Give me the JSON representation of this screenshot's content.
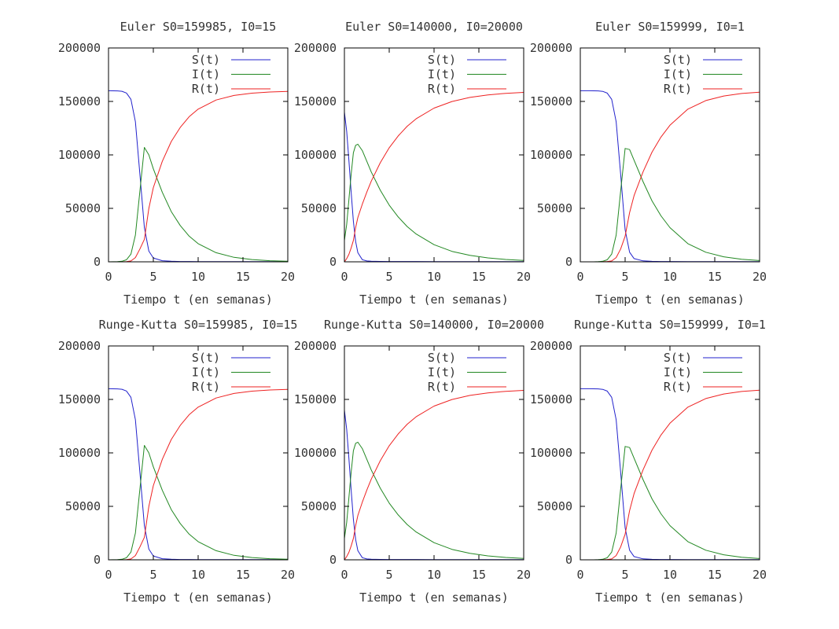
{
  "chart_data": [
    {
      "type": "line",
      "title": "Euler S0=159985, I0=15",
      "xlabel": "Tiempo t (en semanas)",
      "ylabel": "",
      "xlim": [
        0,
        20
      ],
      "ylim": [
        0,
        200000
      ],
      "xticks": [
        "0",
        "5",
        "10",
        "15",
        "20"
      ],
      "yticks": [
        "0",
        "50000",
        "100000",
        "150000",
        "200000"
      ],
      "legend": "top-right",
      "grid": false,
      "x": [
        0,
        0.5,
        1,
        1.5,
        2,
        2.5,
        3,
        3.5,
        4,
        4.5,
        5,
        6,
        7,
        8,
        9,
        10,
        12,
        14,
        16,
        18,
        20
      ],
      "series": [
        {
          "name": "S(t)",
          "color": "#2222cc",
          "values": [
            159985,
            159955,
            159850,
            159450,
            157900,
            152000,
            131000,
            82000,
            32000,
            10000,
            3600,
            1000,
            500,
            320,
            260,
            220,
            200,
            190,
            185,
            182,
            180
          ]
        },
        {
          "name": "I(t)",
          "color": "#228822",
          "values": [
            15,
            45,
            150,
            520,
            1900,
            7200,
            25000,
            66000,
            107000,
            100000,
            87000,
            65000,
            47000,
            34000,
            24000,
            17000,
            8500,
            4200,
            2100,
            1000,
            500
          ]
        },
        {
          "name": "R(t)",
          "color": "#ee2222",
          "values": [
            0,
            0,
            0,
            30,
            200,
            800,
            4000,
            12000,
            21000,
            50000,
            69400,
            94000,
            112500,
            125680,
            135740,
            142780,
            151300,
            155610,
            157715,
            158818,
            159320
          ]
        }
      ]
    },
    {
      "type": "line",
      "title": "Euler S0=140000, I0=20000",
      "xlabel": "Tiempo t (en semanas)",
      "ylabel": "",
      "xlim": [
        0,
        20
      ],
      "ylim": [
        0,
        200000
      ],
      "xticks": [
        "0",
        "5",
        "10",
        "15",
        "20"
      ],
      "yticks": [
        "0",
        "50000",
        "100000",
        "150000",
        "200000"
      ],
      "legend": "top-right",
      "grid": false,
      "x": [
        0,
        0.25,
        0.5,
        0.75,
        1,
        1.25,
        1.5,
        2,
        2.5,
        3,
        4,
        5,
        6,
        7,
        8,
        10,
        12,
        14,
        16,
        18,
        20
      ],
      "series": [
        {
          "name": "S(t)",
          "color": "#2222cc",
          "values": [
            140000,
            122000,
            95000,
            65000,
            38000,
            19000,
            8500,
            2000,
            800,
            500,
            350,
            300,
            280,
            270,
            260,
            250,
            240,
            235,
            230,
            230,
            230
          ]
        },
        {
          "name": "I(t)",
          "color": "#228822",
          "values": [
            20000,
            35000,
            58000,
            82000,
            102000,
            109000,
            110000,
            104000,
            94000,
            84000,
            67000,
            53000,
            42000,
            33000,
            26000,
            16000,
            9800,
            6000,
            3700,
            2200,
            1300
          ]
        },
        {
          "name": "R(t)",
          "color": "#ee2222",
          "values": [
            0,
            3000,
            7000,
            13000,
            20000,
            32000,
            41500,
            54000,
            65200,
            75500,
            92650,
            106700,
            117720,
            126730,
            133740,
            143750,
            149960,
            153765,
            156070,
            157570,
            158470
          ]
        }
      ]
    },
    {
      "type": "line",
      "title": "Euler S0=159999, I0=1",
      "xlabel": "Tiempo t (en semanas)",
      "ylabel": "",
      "xlim": [
        0,
        20
      ],
      "ylim": [
        0,
        200000
      ],
      "xticks": [
        "0",
        "5",
        "10",
        "15",
        "20"
      ],
      "yticks": [
        "0",
        "50000",
        "100000",
        "150000",
        "200000"
      ],
      "legend": "top-right",
      "grid": false,
      "x": [
        0,
        0.5,
        1,
        1.5,
        2,
        2.5,
        3,
        3.5,
        4,
        4.5,
        5,
        5.5,
        6,
        7,
        8,
        9,
        10,
        12,
        14,
        16,
        18,
        20
      ],
      "series": [
        {
          "name": "S(t)",
          "color": "#2222cc",
          "values": [
            159999,
            159998,
            159990,
            159960,
            159850,
            159400,
            157800,
            152000,
            131000,
            82000,
            30000,
            9000,
            3000,
            900,
            450,
            320,
            260,
            220,
            200,
            190,
            185,
            180
          ]
        },
        {
          "name": "I(t)",
          "color": "#228822",
          "values": [
            1,
            2,
            8,
            35,
            140,
            500,
            1900,
            7200,
            25000,
            66000,
            106000,
            105000,
            95000,
            75000,
            57000,
            43000,
            32000,
            17000,
            9000,
            4700,
            2400,
            1200
          ]
        },
        {
          "name": "R(t)",
          "color": "#ee2222",
          "values": [
            0,
            0,
            2,
            5,
            10,
            100,
            300,
            800,
            4000,
            12000,
            24000,
            46000,
            62000,
            84100,
            102550,
            116680,
            127740,
            142780,
            150800,
            155110,
            157415,
            158620
          ]
        }
      ]
    },
    {
      "type": "line",
      "title": "Runge-Kutta S0=159985, I0=15",
      "xlabel": "Tiempo t (en semanas)",
      "ylabel": "",
      "xlim": [
        0,
        20
      ],
      "ylim": [
        0,
        200000
      ],
      "xticks": [
        "0",
        "5",
        "10",
        "15",
        "20"
      ],
      "yticks": [
        "0",
        "50000",
        "100000",
        "150000",
        "200000"
      ],
      "legend": "top-right",
      "grid": false,
      "x": [
        0,
        0.5,
        1,
        1.5,
        2,
        2.5,
        3,
        3.5,
        4,
        4.5,
        5,
        6,
        7,
        8,
        9,
        10,
        12,
        14,
        16,
        18,
        20
      ],
      "series": [
        {
          "name": "S(t)",
          "color": "#2222cc",
          "values": [
            159985,
            159955,
            159850,
            159450,
            157900,
            152000,
            131000,
            82000,
            32000,
            10000,
            3600,
            1000,
            500,
            320,
            260,
            220,
            200,
            190,
            185,
            182,
            180
          ]
        },
        {
          "name": "I(t)",
          "color": "#228822",
          "values": [
            15,
            45,
            150,
            520,
            1900,
            7200,
            25000,
            66000,
            107000,
            100000,
            87000,
            65000,
            47000,
            34000,
            24000,
            17000,
            8500,
            4200,
            2100,
            1000,
            500
          ]
        },
        {
          "name": "R(t)",
          "color": "#ee2222",
          "values": [
            0,
            0,
            0,
            30,
            200,
            800,
            4000,
            12000,
            21000,
            50000,
            69400,
            94000,
            112500,
            125680,
            135740,
            142780,
            151300,
            155610,
            157715,
            158818,
            159320
          ]
        }
      ]
    },
    {
      "type": "line",
      "title": "Runge-Kutta S0=140000, I0=20000",
      "xlabel": "Tiempo t (en semanas)",
      "ylabel": "",
      "xlim": [
        0,
        20
      ],
      "ylim": [
        0,
        200000
      ],
      "xticks": [
        "0",
        "5",
        "10",
        "15",
        "20"
      ],
      "yticks": [
        "0",
        "50000",
        "100000",
        "150000",
        "200000"
      ],
      "legend": "top-right",
      "grid": false,
      "x": [
        0,
        0.25,
        0.5,
        0.75,
        1,
        1.25,
        1.5,
        2,
        2.5,
        3,
        4,
        5,
        6,
        7,
        8,
        10,
        12,
        14,
        16,
        18,
        20
      ],
      "series": [
        {
          "name": "S(t)",
          "color": "#2222cc",
          "values": [
            140000,
            122000,
            95000,
            65000,
            38000,
            19000,
            8500,
            2000,
            800,
            500,
            350,
            300,
            280,
            270,
            260,
            250,
            240,
            235,
            230,
            230,
            230
          ]
        },
        {
          "name": "I(t)",
          "color": "#228822",
          "values": [
            20000,
            35000,
            58000,
            82000,
            102000,
            109000,
            110000,
            104000,
            94000,
            84000,
            67000,
            53000,
            42000,
            33000,
            26000,
            16000,
            9800,
            6000,
            3700,
            2200,
            1300
          ]
        },
        {
          "name": "R(t)",
          "color": "#ee2222",
          "values": [
            0,
            3000,
            7000,
            13000,
            20000,
            32000,
            41500,
            54000,
            65200,
            75500,
            92650,
            106700,
            117720,
            126730,
            133740,
            143750,
            149960,
            153765,
            156070,
            157570,
            158470
          ]
        }
      ]
    },
    {
      "type": "line",
      "title": "Runge-Kutta S0=159999, I0=1",
      "xlabel": "Tiempo t (en semanas)",
      "ylabel": "",
      "xlim": [
        0,
        20
      ],
      "ylim": [
        0,
        200000
      ],
      "xticks": [
        "0",
        "5",
        "10",
        "15",
        "20"
      ],
      "yticks": [
        "0",
        "50000",
        "100000",
        "150000",
        "200000"
      ],
      "legend": "top-right",
      "grid": false,
      "x": [
        0,
        0.5,
        1,
        1.5,
        2,
        2.5,
        3,
        3.5,
        4,
        4.5,
        5,
        5.5,
        6,
        7,
        8,
        9,
        10,
        12,
        14,
        16,
        18,
        20
      ],
      "series": [
        {
          "name": "S(t)",
          "color": "#2222cc",
          "values": [
            159999,
            159998,
            159990,
            159960,
            159850,
            159400,
            157800,
            152000,
            131000,
            82000,
            30000,
            9000,
            3000,
            900,
            450,
            320,
            260,
            220,
            200,
            190,
            185,
            180
          ]
        },
        {
          "name": "I(t)",
          "color": "#228822",
          "values": [
            1,
            2,
            8,
            35,
            140,
            500,
            1900,
            7200,
            25000,
            66000,
            106000,
            105000,
            95000,
            75000,
            57000,
            43000,
            32000,
            17000,
            9000,
            4700,
            2400,
            1200
          ]
        },
        {
          "name": "R(t)",
          "color": "#ee2222",
          "values": [
            0,
            0,
            2,
            5,
            10,
            100,
            300,
            800,
            4000,
            12000,
            24000,
            46000,
            62000,
            84100,
            102550,
            116680,
            127740,
            142780,
            150800,
            155110,
            157415,
            158620
          ]
        }
      ]
    }
  ]
}
